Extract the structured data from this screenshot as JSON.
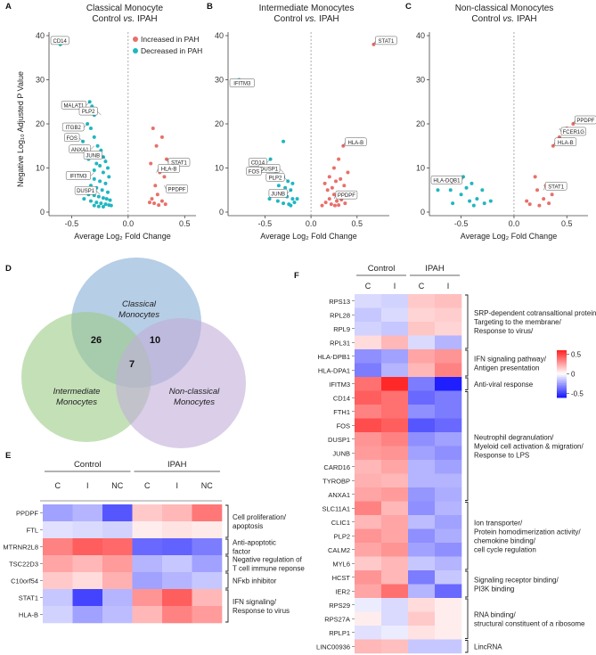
{
  "panel_labels": {
    "A": "A",
    "B": "B",
    "C": "C",
    "D": "D",
    "E": "E",
    "F": "F"
  },
  "volcano_common": {
    "xlabel": "Average Log₂ Fold Change",
    "ylabel": "Negative Log₁₀ Adjusted P Value",
    "legend_up": "Increased in PAH",
    "legend_down": "Decreased in PAH",
    "color_up": "#e8706a",
    "color_down": "#1fb7c0"
  },
  "chart_data": [
    {
      "type": "scatter",
      "id": "A",
      "title": "Classical Monocyte",
      "subtitle": "Control vs. IPAH",
      "xlim": [
        -0.7,
        0.6
      ],
      "ylim": [
        0,
        40
      ],
      "xticks": [
        "-0.5",
        "0.0",
        "0.5"
      ],
      "yticks": [
        "0",
        "10",
        "20",
        "30",
        "40"
      ],
      "down": [
        [
          -0.6,
          38
        ],
        [
          -0.34,
          25
        ],
        [
          -0.32,
          24
        ],
        [
          -0.3,
          22
        ],
        [
          -0.36,
          20
        ],
        [
          -0.33,
          19
        ],
        [
          -0.3,
          17
        ],
        [
          -0.4,
          16
        ],
        [
          -0.27,
          15
        ],
        [
          -0.24,
          14
        ],
        [
          -0.3,
          13
        ],
        [
          -0.22,
          12.5
        ],
        [
          -0.35,
          12
        ],
        [
          -0.2,
          11.5
        ],
        [
          -0.28,
          11
        ],
        [
          -0.25,
          10.5
        ],
        [
          -0.18,
          10
        ],
        [
          -0.3,
          9.5
        ],
        [
          -0.22,
          9
        ],
        [
          -0.36,
          8.5
        ],
        [
          -0.17,
          8
        ],
        [
          -0.3,
          7.5
        ],
        [
          -0.25,
          7
        ],
        [
          -0.2,
          6.5
        ],
        [
          -0.33,
          6
        ],
        [
          -0.28,
          5.5
        ],
        [
          -0.23,
          5
        ],
        [
          -0.18,
          4.5
        ],
        [
          -0.35,
          4
        ],
        [
          -0.3,
          3.8
        ],
        [
          -0.26,
          3.5
        ],
        [
          -0.22,
          3.2
        ],
        [
          -0.19,
          3
        ],
        [
          -0.16,
          2.7
        ],
        [
          -0.33,
          2.5
        ],
        [
          -0.28,
          2.2
        ],
        [
          -0.24,
          2
        ],
        [
          -0.2,
          1.8
        ],
        [
          -0.17,
          1.6
        ],
        [
          -0.3,
          1.5
        ],
        [
          -0.26,
          1.3
        ],
        [
          -0.22,
          1.2
        ],
        [
          -0.15,
          1.5
        ],
        [
          -0.39,
          3
        ]
      ],
      "up": [
        [
          0.22,
          19
        ],
        [
          0.3,
          17
        ],
        [
          0.25,
          15
        ],
        [
          0.34,
          12
        ],
        [
          0.2,
          11
        ],
        [
          0.28,
          9
        ],
        [
          0.32,
          8
        ],
        [
          0.24,
          6
        ],
        [
          0.26,
          4
        ],
        [
          0.21,
          3
        ],
        [
          0.3,
          2.5
        ],
        [
          0.23,
          2
        ],
        [
          0.27,
          1.6
        ],
        [
          0.33,
          1.8
        ],
        [
          0.19,
          2.2
        ]
      ],
      "labels": [
        {
          "text": "CD14",
          "x": -0.6,
          "y": 38
        },
        {
          "text": "MALAT1",
          "x": -0.34,
          "y": 25
        },
        {
          "text": "PLP2",
          "x": -0.24,
          "y": 22
        },
        {
          "text": "ITGB2",
          "x": -0.36,
          "y": 20
        },
        {
          "text": "FOS",
          "x": -0.4,
          "y": 16
        },
        {
          "text": "ANXA1",
          "x": -0.3,
          "y": 15
        },
        {
          "text": "JUNB",
          "x": -0.2,
          "y": 12
        },
        {
          "text": "IFITM3",
          "x": -0.3,
          "y": 9
        },
        {
          "text": "DUSP1",
          "x": -0.25,
          "y": 4
        },
        {
          "text": "STAT1",
          "x": 0.34,
          "y": 12
        },
        {
          "text": "HLA-B",
          "x": 0.25,
          "y": 9
        },
        {
          "text": "PPDPF",
          "x": 0.32,
          "y": 6
        }
      ]
    },
    {
      "type": "scatter",
      "id": "B",
      "title": "Intermediate Monocytes",
      "subtitle": "Control vs. IPAH",
      "xlim": [
        -0.9,
        0.85
      ],
      "ylim": [
        0,
        40
      ],
      "xticks": [
        "-0.5",
        "0.0",
        "0.5"
      ],
      "yticks": [
        "0",
        "10",
        "20",
        "30",
        "40"
      ],
      "down": [
        [
          -0.78,
          30
        ],
        [
          -0.3,
          16
        ],
        [
          -0.44,
          12
        ],
        [
          -0.5,
          10
        ],
        [
          -0.38,
          9
        ],
        [
          -0.3,
          8
        ],
        [
          -0.25,
          7
        ],
        [
          -0.2,
          6.5
        ],
        [
          -0.35,
          6
        ],
        [
          -0.28,
          5.5
        ],
        [
          -0.22,
          5
        ],
        [
          -0.4,
          4.5
        ],
        [
          -0.32,
          4
        ],
        [
          -0.26,
          3.5
        ],
        [
          -0.2,
          3
        ],
        [
          -0.36,
          2.5
        ],
        [
          -0.3,
          2
        ],
        [
          -0.24,
          1.8
        ],
        [
          -0.18,
          2.2
        ],
        [
          -0.15,
          3
        ],
        [
          -0.45,
          3
        ],
        [
          -0.22,
          1.5
        ]
      ],
      "up": [
        [
          0.68,
          38
        ],
        [
          0.55,
          16
        ],
        [
          0.35,
          15
        ],
        [
          0.3,
          12
        ],
        [
          0.25,
          10
        ],
        [
          0.4,
          9
        ],
        [
          0.2,
          8
        ],
        [
          0.32,
          7.5
        ],
        [
          0.27,
          7
        ],
        [
          0.15,
          6.5
        ],
        [
          0.36,
          6
        ],
        [
          0.23,
          5.5
        ],
        [
          0.18,
          5
        ],
        [
          0.3,
          4.5
        ],
        [
          0.25,
          4
        ],
        [
          0.4,
          3.5
        ],
        [
          0.2,
          3
        ],
        [
          0.33,
          2.8
        ],
        [
          0.28,
          2.5
        ],
        [
          0.16,
          2.2
        ],
        [
          0.37,
          2
        ],
        [
          0.22,
          1.8
        ],
        [
          0.3,
          1.6
        ],
        [
          0.12,
          1.5
        ],
        [
          0.26,
          1.5
        ],
        [
          0.42,
          4
        ]
      ],
      "labels": [
        {
          "text": "STAT1",
          "x": 0.68,
          "y": 38
        },
        {
          "text": "IFITM3",
          "x": -0.78,
          "y": 30
        },
        {
          "text": "HLA-B",
          "x": 0.35,
          "y": 15
        },
        {
          "text": "CD14",
          "x": -0.44,
          "y": 12
        },
        {
          "text": "DUSP1",
          "x": -0.3,
          "y": 9
        },
        {
          "text": "FOS",
          "x": -0.5,
          "y": 10
        },
        {
          "text": "PLP2",
          "x": -0.25,
          "y": 7
        },
        {
          "text": "JUNB",
          "x": -0.22,
          "y": 5
        },
        {
          "text": "PPDPF",
          "x": 0.25,
          "y": 3
        }
      ]
    },
    {
      "type": "scatter",
      "id": "C",
      "title": "Non-classical Monocytes",
      "subtitle": "Control vs. IPAH",
      "xlim": [
        -0.8,
        0.7
      ],
      "ylim": [
        0,
        40
      ],
      "xticks": [
        "-0.5",
        "0.0",
        "0.5"
      ],
      "yticks": [
        "0",
        "10",
        "20",
        "30",
        "40"
      ],
      "down": [
        [
          -0.48,
          8
        ],
        [
          -0.55,
          7
        ],
        [
          -0.4,
          6.5
        ],
        [
          -0.72,
          5
        ],
        [
          -0.45,
          5.5
        ],
        [
          -0.3,
          5
        ],
        [
          -0.5,
          4
        ],
        [
          -0.35,
          3
        ],
        [
          -0.42,
          2.5
        ],
        [
          -0.58,
          2
        ],
        [
          -0.28,
          2
        ],
        [
          -0.38,
          1.5
        ],
        [
          -0.22,
          2.5
        ],
        [
          -0.6,
          5
        ]
      ],
      "up": [
        [
          0.56,
          20
        ],
        [
          0.5,
          19
        ],
        [
          0.43,
          17
        ],
        [
          0.37,
          15
        ],
        [
          0.2,
          8
        ],
        [
          0.3,
          6
        ],
        [
          0.22,
          5
        ],
        [
          0.36,
          4
        ],
        [
          0.28,
          3
        ],
        [
          0.33,
          2
        ],
        [
          0.12,
          2.5
        ],
        [
          0.15,
          1.8
        ],
        [
          0.24,
          1.5
        ]
      ],
      "labels": [
        {
          "text": "PPDPF",
          "x": 0.56,
          "y": 20
        },
        {
          "text": "FCER1G",
          "x": 0.43,
          "y": 19
        },
        {
          "text": "HLA-B",
          "x": 0.37,
          "y": 15
        },
        {
          "text": "HLA-DQB1",
          "x": -0.48,
          "y": 8
        },
        {
          "text": "STAT1",
          "x": 0.28,
          "y": 5
        }
      ]
    },
    {
      "type": "heatmap",
      "id": "E",
      "groups": [
        "Control",
        "IPAH"
      ],
      "columns": [
        "C",
        "I",
        "NC",
        "C",
        "I",
        "NC"
      ],
      "rows": [
        "PPDPF",
        "FTL",
        "MTRNR2L8",
        "TSC22D3",
        "C10orf54",
        "STAT1",
        "HLA-B"
      ],
      "values": [
        [
          -0.25,
          -0.2,
          -0.45,
          0.15,
          0.2,
          0.38
        ],
        [
          -0.08,
          -0.1,
          -0.12,
          0.05,
          0.08,
          0.06
        ],
        [
          0.35,
          0.45,
          0.42,
          -0.4,
          -0.42,
          -0.35
        ],
        [
          0.25,
          0.2,
          0.28,
          -0.2,
          -0.15,
          -0.25
        ],
        [
          0.15,
          0.1,
          0.22,
          -0.25,
          -0.2,
          -0.15
        ],
        [
          -0.15,
          -0.5,
          -0.2,
          0.3,
          0.45,
          0.2
        ],
        [
          -0.12,
          -0.25,
          -0.18,
          0.2,
          0.35,
          0.28
        ]
      ],
      "annotations": [
        {
          "text": [
            "Cell proliferation/",
            "apoptosis"
          ],
          "rows": [
            0,
            1
          ]
        },
        {
          "text": [
            "Anti-apoptotic",
            "factor"
          ],
          "rows": [
            2,
            2
          ]
        },
        {
          "text": [
            "Negative regulation of",
            "T cell immune reponse"
          ],
          "rows": [
            3,
            3
          ]
        },
        {
          "text": [
            "NFκb inhibitor"
          ],
          "rows": [
            4,
            4
          ]
        },
        {
          "text": [
            "IFN signaling/",
            "Response to virus"
          ],
          "rows": [
            5,
            6
          ]
        }
      ]
    },
    {
      "type": "heatmap",
      "id": "F",
      "groups": [
        "Control",
        "IPAH"
      ],
      "columns": [
        "C",
        "I",
        "C",
        "I"
      ],
      "rows": [
        "RPS13",
        "RPL28",
        "RPL9",
        "RPL31",
        "HLA-DPB1",
        "HLA-DPA1",
        "IFITM3",
        "CD14",
        "FTH1",
        "FOS",
        "DUSP1",
        "JUNB",
        "CARD16",
        "TYROBP",
        "ANXA1",
        "SLC11A1",
        "CLIC1",
        "PLP2",
        "CALM2",
        "MYL6",
        "HCST",
        "IER2",
        "RPS29",
        "RPS27A",
        "RPLP1",
        "LINC00936"
      ],
      "values": [
        [
          -0.1,
          -0.12,
          0.15,
          0.18
        ],
        [
          -0.15,
          -0.1,
          0.12,
          0.14
        ],
        [
          -0.12,
          -0.15,
          0.16,
          0.12
        ],
        [
          0.1,
          0.2,
          -0.1,
          -0.2
        ],
        [
          -0.3,
          -0.25,
          0.25,
          0.3
        ],
        [
          -0.35,
          -0.2,
          0.2,
          0.35
        ],
        [
          0.4,
          0.6,
          -0.35,
          -0.6
        ],
        [
          0.45,
          0.4,
          -0.4,
          -0.35
        ],
        [
          0.35,
          0.4,
          -0.3,
          -0.35
        ],
        [
          0.5,
          0.45,
          -0.45,
          -0.4
        ],
        [
          0.3,
          0.35,
          -0.3,
          -0.25
        ],
        [
          0.28,
          0.3,
          -0.25,
          -0.3
        ],
        [
          0.2,
          0.25,
          -0.2,
          -0.25
        ],
        [
          0.22,
          0.2,
          -0.2,
          -0.2
        ],
        [
          0.25,
          0.28,
          -0.28,
          -0.22
        ],
        [
          0.35,
          0.2,
          -0.3,
          -0.2
        ],
        [
          0.2,
          0.25,
          -0.18,
          -0.25
        ],
        [
          0.3,
          0.25,
          -0.3,
          -0.22
        ],
        [
          0.25,
          0.3,
          -0.25,
          -0.3
        ],
        [
          0.15,
          0.2,
          -0.15,
          -0.2
        ],
        [
          0.3,
          0.2,
          -0.35,
          -0.15
        ],
        [
          0.25,
          0.4,
          -0.2,
          -0.4
        ],
        [
          -0.05,
          -0.1,
          0.1,
          0.05
        ],
        [
          0.05,
          -0.1,
          0.15,
          0.05
        ],
        [
          -0.08,
          -0.05,
          0.08,
          0.05
        ],
        [
          0.2,
          0.18,
          -0.15,
          -0.15
        ]
      ],
      "annotations": [
        {
          "text": [
            "SRP-dependent cotransaltional protein",
            "Targeting to the membrane/",
            "Response to virus/"
          ],
          "rows": [
            0,
            3
          ]
        },
        {
          "text": [
            "IFN signaling pathway/",
            "Antigen presentation"
          ],
          "rows": [
            4,
            5
          ]
        },
        {
          "text": [
            "Anti-viral response"
          ],
          "rows": [
            6,
            6
          ]
        },
        {
          "text": [
            "Neutrophil degranulation/",
            "Myeloid cell activation & migration/",
            "Response to LPS"
          ],
          "rows": [
            7,
            14
          ]
        },
        {
          "text": [
            "Ion transporter/",
            "Protein homodimerization activity/",
            "chemokine binding/",
            "cell cycle regulation"
          ],
          "rows": [
            15,
            19
          ]
        },
        {
          "text": [
            "Signaling receptor binding/",
            "PI3K binding"
          ],
          "rows": [
            20,
            21
          ]
        },
        {
          "text": [
            "RNA binding/",
            "structural constituent of a ribosome"
          ],
          "rows": [
            22,
            24
          ]
        },
        {
          "text": [
            "LincRNA"
          ],
          "rows": [
            25,
            25
          ]
        }
      ],
      "colorbar": {
        "ticks": [
          "0.5",
          "0",
          "-0.5"
        ],
        "range": [
          -0.6,
          0.6
        ]
      }
    }
  ],
  "venn": {
    "classical": "Classical\nMonocytes",
    "intermediate": "Intermediate\nMonocytes",
    "nonclassical": "Non-classical\nMonocytes",
    "count_ci": "26",
    "count_cn": "10",
    "count_all": "7",
    "color_classical": "#8fb4d9",
    "color_intermediate": "#9ccb87",
    "color_nonclassical": "#c2aed8"
  }
}
